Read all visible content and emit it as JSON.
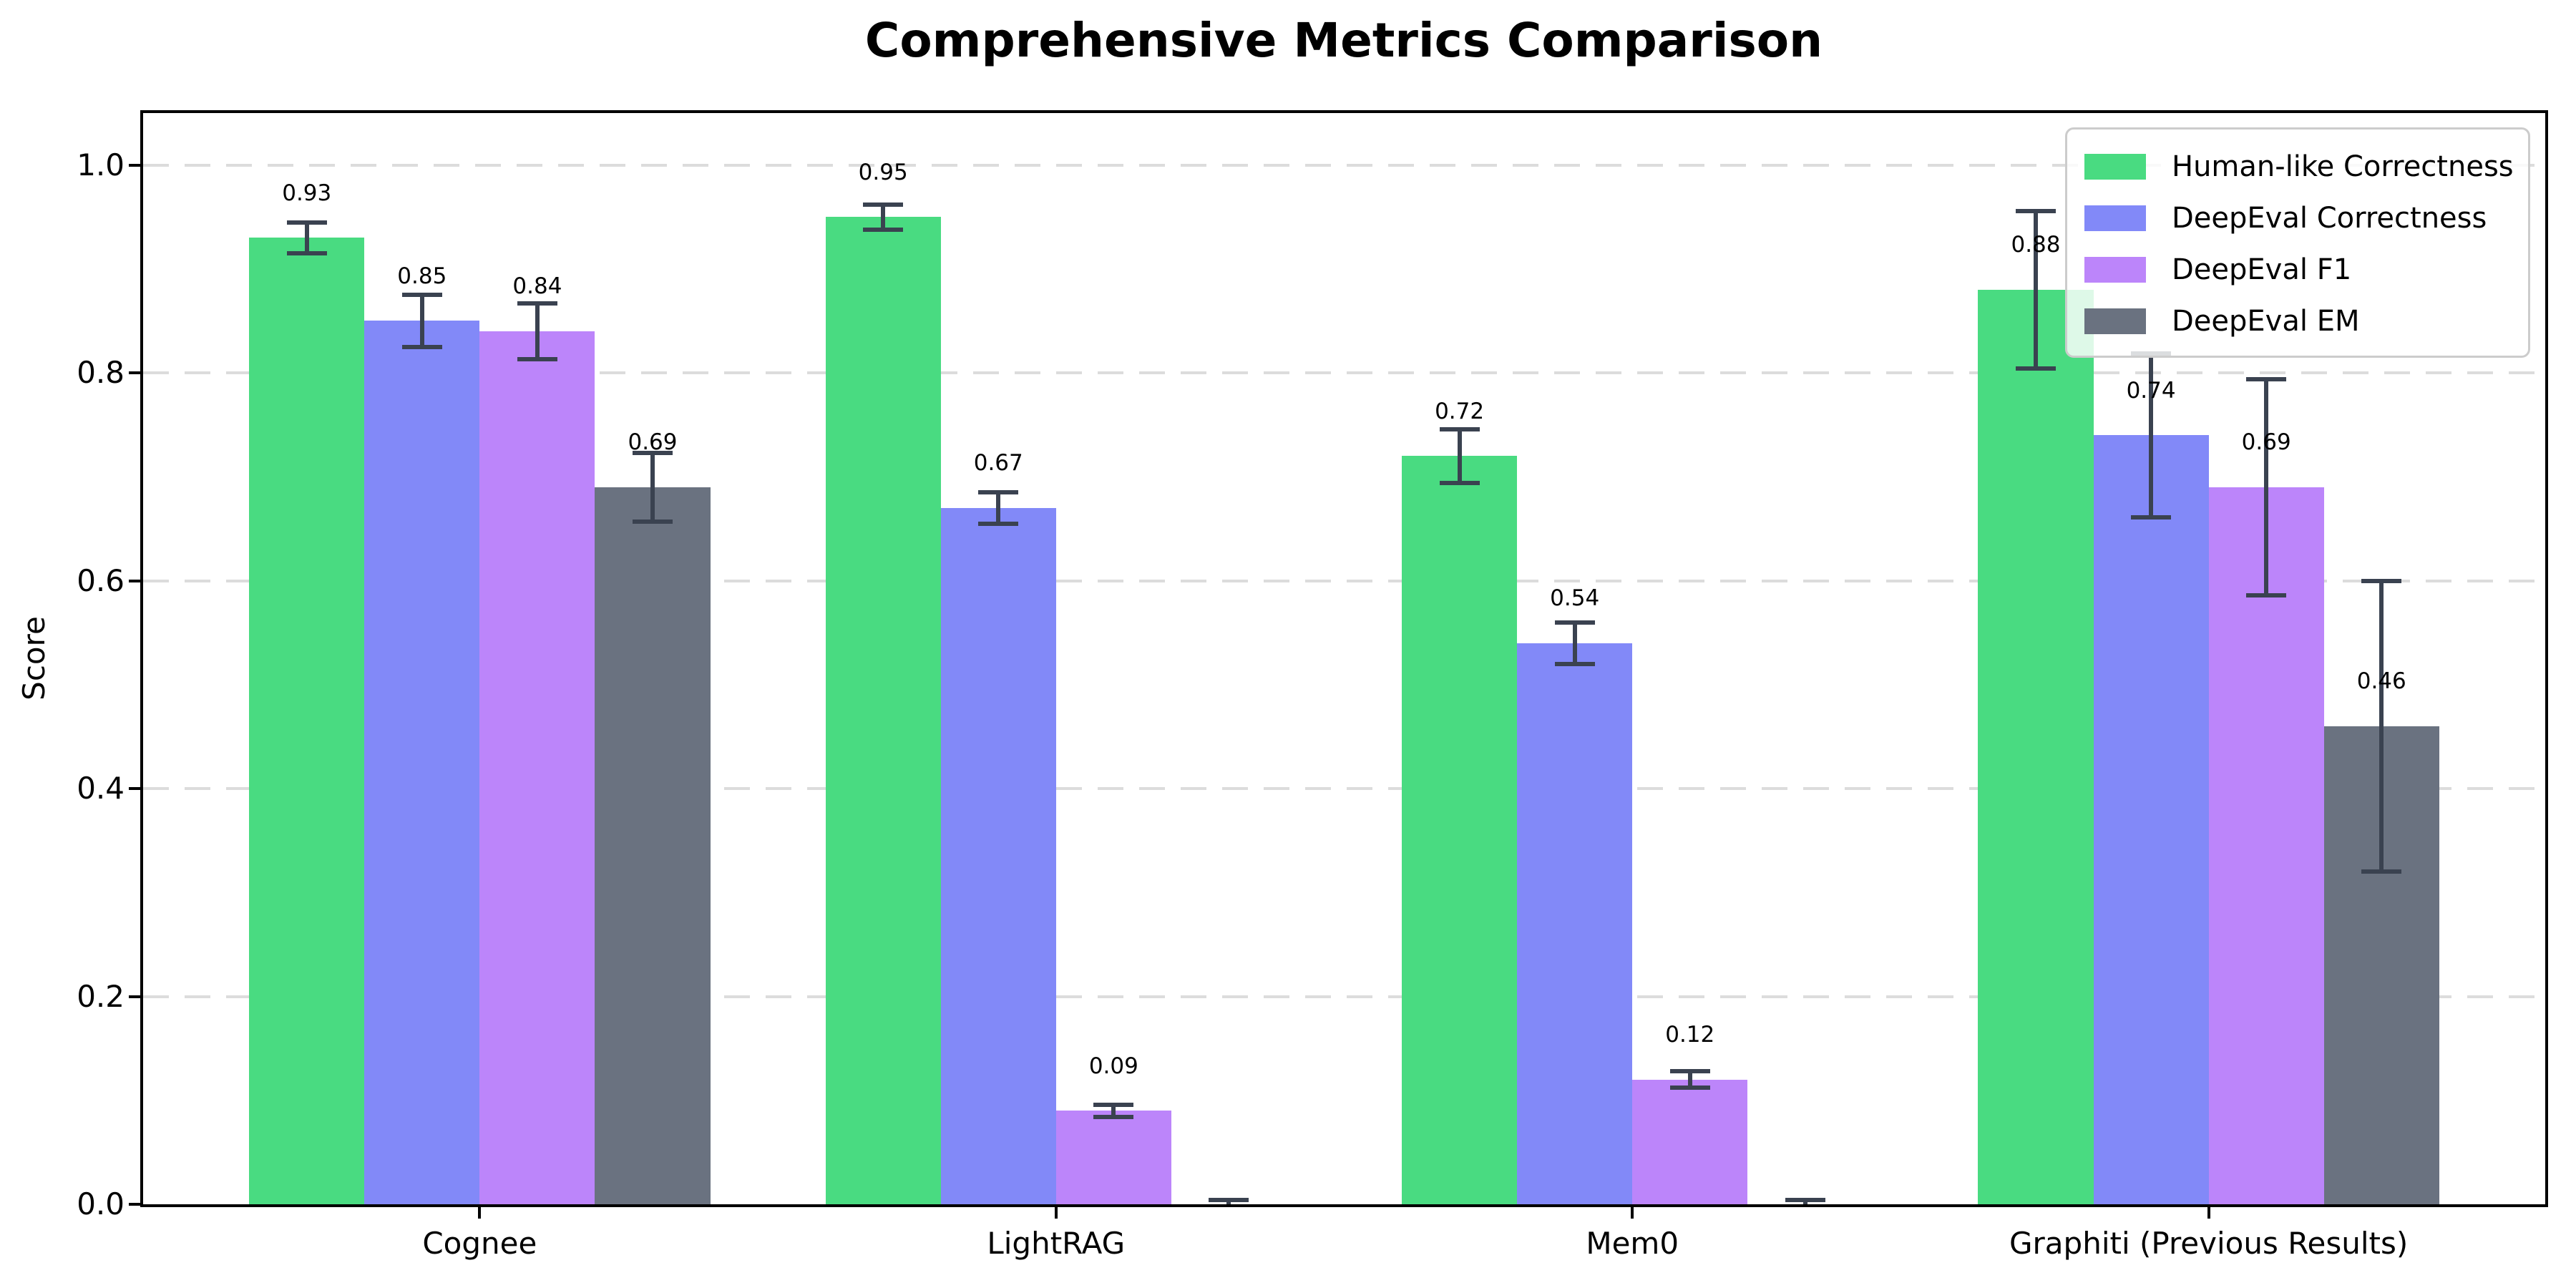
{
  "figure": {
    "background": "#ffffff"
  },
  "chart_data": {
    "type": "bar",
    "title": "Comprehensive Metrics Comparison",
    "xlabel": "",
    "ylabel": "Score",
    "categories": [
      "Cognee",
      "LightRAG",
      "Mem0",
      "Graphiti (Previous Results)"
    ],
    "series": [
      {
        "name": "Human-like Correctness",
        "color": "#49db81",
        "values": [
          0.93,
          0.95,
          0.72,
          0.88
        ],
        "errors": [
          0.015,
          0.012,
          0.026,
          0.076
        ],
        "labels": [
          "0.93",
          "0.95",
          "0.72",
          "0.88"
        ]
      },
      {
        "name": "DeepEval Correctness",
        "color": "#8289f8",
        "values": [
          0.85,
          0.67,
          0.54,
          0.74
        ],
        "errors": [
          0.025,
          0.015,
          0.02,
          0.079
        ],
        "labels": [
          "0.85",
          "0.67",
          "0.54",
          "0.74"
        ]
      },
      {
        "name": "DeepEval F1",
        "color": "#bc85fa",
        "values": [
          0.84,
          0.09,
          0.12,
          0.69
        ],
        "errors": [
          0.027,
          0.006,
          0.008,
          0.104
        ],
        "labels": [
          "0.84",
          "0.09",
          "0.12",
          "0.69"
        ]
      },
      {
        "name": "DeepEval EM",
        "color": "#6a7280",
        "values": [
          0.69,
          0.0,
          0.0,
          0.46
        ],
        "errors": [
          0.033,
          0.004,
          0.004,
          0.14
        ],
        "labels": [
          "0.69",
          "",
          "",
          "0.46"
        ]
      }
    ],
    "yticks": [
      "0.0",
      "0.2",
      "0.4",
      "0.6",
      "0.8",
      "1.0"
    ],
    "ylim": [
      0,
      1.05
    ],
    "grid": "horizontal-dashed",
    "grid_color": "#dcdcdc",
    "error_bar_color": "#3a4250",
    "legend_position": "upper-right",
    "legend_entries": [
      "Human-like Correctness",
      "DeepEval Correctness",
      "DeepEval F1",
      "DeepEval EM"
    ]
  }
}
